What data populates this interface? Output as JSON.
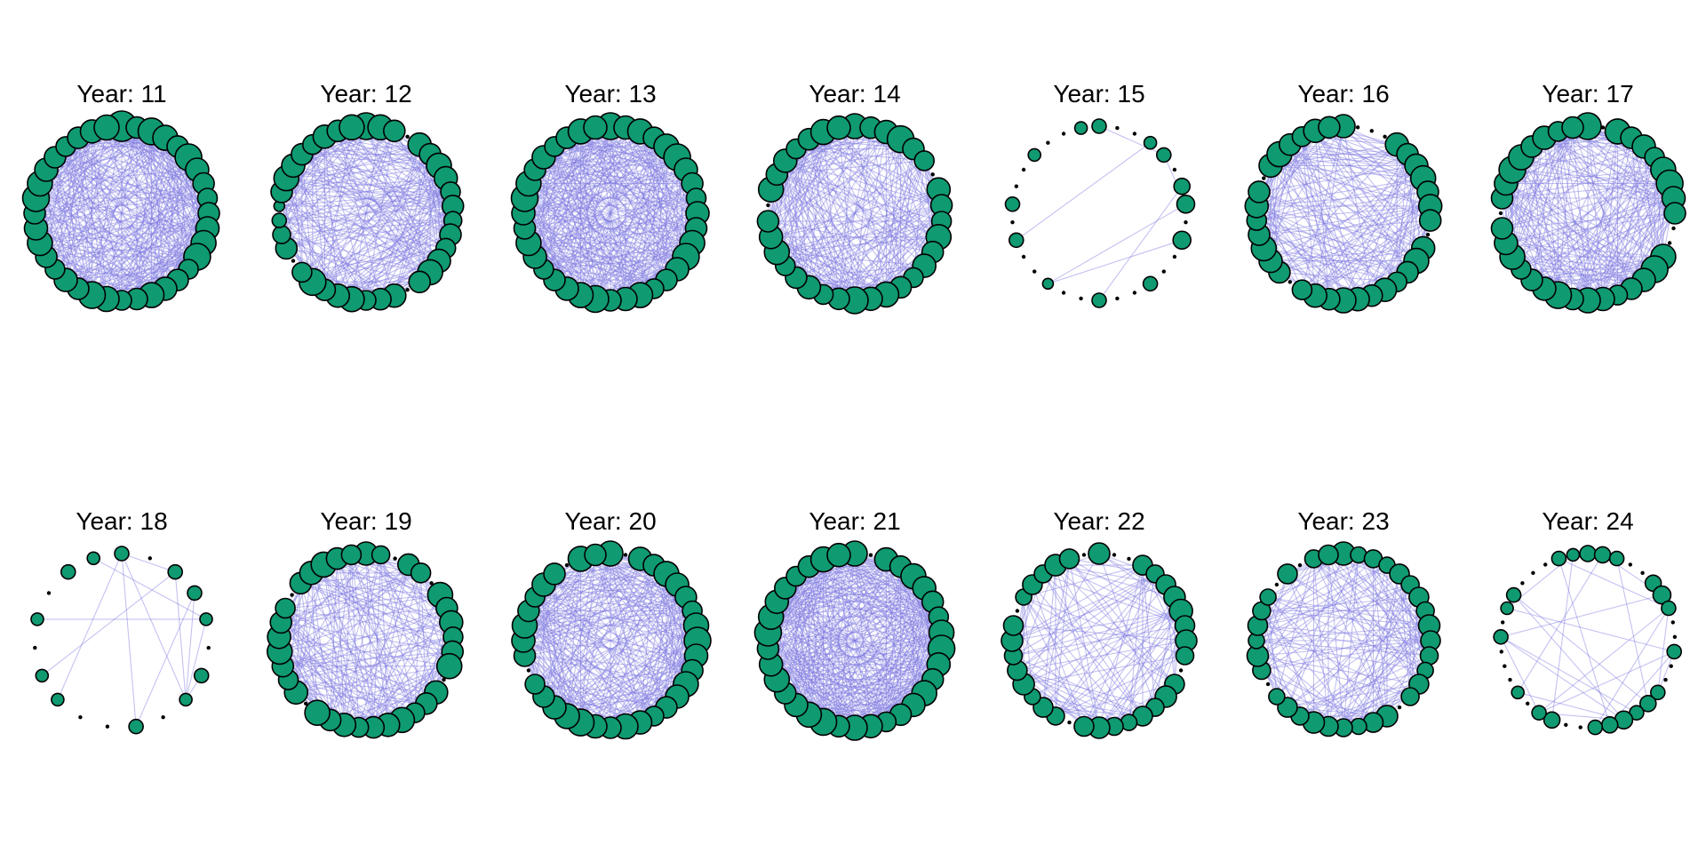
{
  "figure": {
    "panels": [
      {
        "title": "Year: 11",
        "nodes": [
          17,
          12,
          15,
          14,
          12,
          15,
          13,
          12,
          11,
          12,
          13,
          14,
          15,
          11,
          12,
          13,
          14,
          12,
          11,
          14,
          15,
          12,
          13,
          11,
          12,
          14,
          13,
          12,
          15,
          14,
          13,
          12,
          11,
          12,
          13,
          14
        ],
        "edges": 0.55
      },
      {
        "title": "Year: 12",
        "nodes": [
          15,
          14,
          12,
          0,
          13,
          12,
          14,
          13,
          11,
          12,
          10,
          12,
          11,
          13,
          14,
          12,
          0,
          13,
          12,
          11,
          14,
          13,
          12,
          15,
          11,
          0,
          12,
          10,
          8,
          6,
          12,
          14,
          13,
          12,
          11,
          13,
          12,
          14
        ],
        "edges": 0.45
      },
      {
        "title": "Year: 13",
        "nodes": [
          15,
          13,
          14,
          12,
          14,
          15,
          13,
          12,
          11,
          13,
          12,
          14,
          15,
          13,
          12,
          11,
          14,
          13,
          12,
          15,
          14,
          13,
          12,
          11,
          13,
          14,
          12,
          13,
          15,
          14,
          12,
          13,
          11,
          12,
          14,
          13
        ],
        "edges": 0.55
      },
      {
        "title": "Year: 14",
        "nodes": [
          14,
          12,
          13,
          15,
          12,
          11,
          0,
          13,
          12,
          11,
          14,
          12,
          13,
          11,
          12,
          14,
          13,
          15,
          12,
          11,
          13,
          12,
          11,
          14,
          13,
          12,
          0,
          14,
          12,
          13,
          11,
          12,
          14,
          13
        ],
        "edges": 0.5
      },
      {
        "title": "Year: 15",
        "nodes": [
          8,
          0,
          0,
          7,
          8,
          0,
          9,
          10,
          0,
          10,
          0,
          0,
          8,
          0,
          0,
          8,
          0,
          0,
          6,
          0,
          0,
          8,
          0,
          8,
          0,
          0,
          7,
          0,
          0,
          7
        ],
        "edges": 0.12
      },
      {
        "title": "Year: 16",
        "nodes": [
          13,
          0,
          0,
          0,
          13,
          12,
          13,
          14,
          12,
          13,
          12,
          0,
          13,
          14,
          12,
          11,
          13,
          12,
          13,
          14,
          12,
          13,
          11,
          0,
          12,
          13,
          14,
          12,
          11,
          13,
          12,
          0,
          13,
          14,
          12,
          11,
          13,
          12
        ],
        "edges": 0.4
      },
      {
        "title": "Year: 17",
        "nodes": [
          15,
          0,
          14,
          12,
          13,
          11,
          14,
          15,
          13,
          12,
          0,
          0,
          14,
          15,
          13,
          12,
          11,
          13,
          14,
          12,
          15,
          13,
          12,
          11,
          14,
          13,
          12,
          0,
          12,
          13,
          15,
          14,
          12,
          13,
          11,
          12
        ],
        "edges": 0.5
      },
      {
        "title": "Year: 18",
        "nodes": [
          8,
          0,
          8,
          8,
          7,
          0,
          8,
          7,
          0,
          8,
          0,
          0,
          7,
          7,
          0,
          7,
          0,
          8,
          7
        ],
        "edges": 0.2
      },
      {
        "title": "Year: 19",
        "nodes": [
          13,
          10,
          0,
          12,
          11,
          0,
          14,
          12,
          13,
          11,
          12,
          14,
          0,
          13,
          12,
          11,
          14,
          13,
          12,
          11,
          13,
          12,
          14,
          0,
          13,
          11,
          12,
          14,
          13,
          12,
          11,
          0,
          12,
          13,
          14,
          12,
          11
        ],
        "edges": 0.45
      },
      {
        "title": "Year: 20",
        "nodes": [
          14,
          0,
          13,
          12,
          14,
          13,
          12,
          11,
          14,
          15,
          13,
          12,
          14,
          13,
          12,
          11,
          13,
          14,
          12,
          13,
          15,
          14,
          13,
          12,
          11,
          0,
          12,
          13,
          14,
          12,
          11,
          13,
          12,
          0,
          14,
          12
        ],
        "edges": 0.55
      },
      {
        "title": "Year: 21",
        "nodes": [
          14,
          0,
          13,
          12,
          14,
          13,
          12,
          11,
          14,
          15,
          13,
          12,
          14,
          13,
          12,
          11,
          13,
          14,
          12,
          15,
          14,
          13,
          12,
          14,
          13,
          12,
          15,
          14,
          13,
          12,
          11,
          12,
          14,
          13
        ],
        "edges": 0.65
      },
      {
        "title": "Year: 22",
        "nodes": [
          12,
          0,
          0,
          11,
          10,
          11,
          12,
          13,
          11,
          12,
          10,
          0,
          11,
          12,
          10,
          11,
          9,
          10,
          12,
          11,
          0,
          10,
          11,
          9,
          12,
          11,
          10,
          12,
          11,
          0,
          9,
          11,
          10,
          12,
          11,
          0
        ],
        "edges": 0.3
      },
      {
        "title": "Year: 23",
        "nodes": [
          13,
          9,
          10,
          9,
          11,
          10,
          11,
          10,
          12,
          11,
          10,
          9,
          11,
          10,
          0,
          12,
          11,
          9,
          10,
          11,
          12,
          10,
          11,
          9,
          0,
          10,
          12,
          9,
          11,
          10,
          9,
          0,
          11,
          0,
          10,
          11
        ],
        "edges": 0.35
      },
      {
        "title": "Year: 24",
        "nodes": [
          9,
          9,
          8,
          0,
          0,
          9,
          10,
          8,
          0,
          0,
          8,
          0,
          0,
          8,
          9,
          8,
          10,
          9,
          8,
          0,
          0,
          9,
          8,
          0,
          7,
          0,
          0,
          0,
          8,
          0,
          7,
          8,
          0,
          0,
          0,
          8,
          7
        ],
        "edges": 0.15
      }
    ]
  }
}
